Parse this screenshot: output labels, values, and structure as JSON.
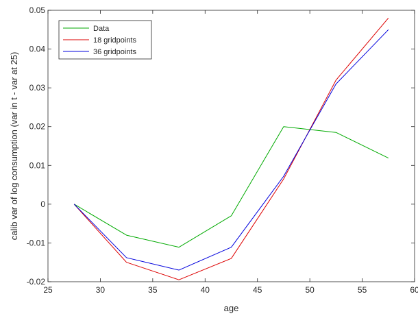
{
  "chart_data": {
    "type": "line",
    "title": "",
    "xlabel": "age",
    "ylabel": "calib var of log consumption (var in t - var at 25)",
    "xlim": [
      25,
      60
    ],
    "ylim": [
      -0.02,
      0.05
    ],
    "xticks": [
      25,
      30,
      35,
      40,
      45,
      50,
      55,
      60
    ],
    "xtick_labels": [
      "25",
      "30",
      "35",
      "40",
      "45",
      "50",
      "55",
      "60"
    ],
    "yticks": [
      -0.02,
      -0.01,
      0,
      0.01,
      0.02,
      0.03,
      0.04,
      0.05
    ],
    "ytick_labels": [
      "-0.02",
      "-0.01",
      "0",
      "0.01",
      "0.02",
      "0.03",
      "0.04",
      "0.05"
    ],
    "grid": false,
    "legend_position": "top-left",
    "x": [
      27.5,
      32.5,
      37.5,
      42.5,
      47.5,
      52.5,
      57.5
    ],
    "series": [
      {
        "name": "Data",
        "color": "#00aa00",
        "values": [
          0,
          -0.008,
          -0.0111,
          -0.003,
          0.02,
          0.0185,
          0.0119
        ]
      },
      {
        "name": "18 gridpoints",
        "color": "#dd0000",
        "values": [
          0,
          -0.015,
          -0.0195,
          -0.014,
          0.0065,
          0.032,
          0.048
        ]
      },
      {
        "name": "36 gridpoints",
        "color": "#0000dd",
        "values": [
          0,
          -0.0138,
          -0.017,
          -0.0111,
          0.0072,
          0.031,
          0.045
        ]
      }
    ]
  }
}
